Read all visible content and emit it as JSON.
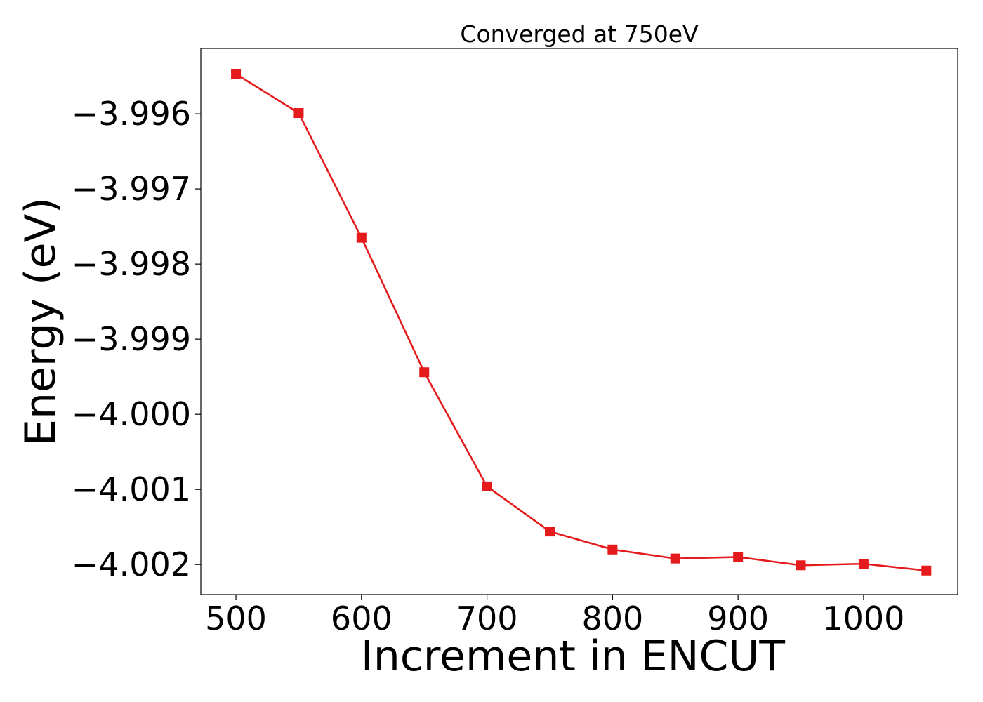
{
  "chart_data": {
    "type": "line",
    "title": "Converged at 750eV",
    "xlabel": "Increment in ENCUT",
    "ylabel": "Energy (eV)",
    "xlim": [
      472,
      1075
    ],
    "ylim": [
      -4.0024,
      -3.99513
    ],
    "x_ticks": [
      500,
      600,
      700,
      800,
      900,
      1000
    ],
    "x_tick_labels": [
      "500",
      "600",
      "700",
      "800",
      "900",
      "1000"
    ],
    "y_ticks": [
      -3.996,
      -3.997,
      -3.998,
      -3.999,
      -4.0,
      -4.001,
      -4.002
    ],
    "y_tick_labels": [
      "−3.996",
      "−3.997",
      "−3.998",
      "−3.999",
      "−4.000",
      "−4.001",
      "−4.002"
    ],
    "grid": false,
    "marker": "square",
    "line_color": "#e41a1c",
    "series": [
      {
        "x": [
          500,
          550,
          600,
          650,
          700,
          750,
          800,
          850,
          900,
          950,
          1000,
          1050
        ],
        "values": [
          -3.99547,
          -3.99599,
          -3.99765,
          -3.99944,
          -4.00096,
          -4.00156,
          -4.0018,
          -4.00192,
          -4.0019,
          -4.00201,
          -4.00199,
          -4.00208
        ]
      }
    ]
  }
}
